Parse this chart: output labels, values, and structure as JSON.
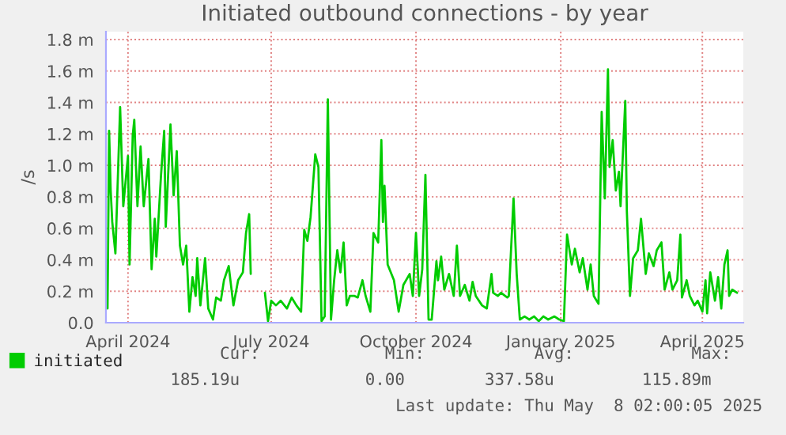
{
  "chart_data": {
    "type": "line",
    "title": "Initiated outbound connections - by year",
    "ylabel": "/s",
    "xlim": [
      "2024-03-18",
      "2025-04-27"
    ],
    "xticks": [
      {
        "value": "2024-04-01",
        "label": "April 2024"
      },
      {
        "value": "2024-07-01",
        "label": "July 2024"
      },
      {
        "value": "2024-10-01",
        "label": "October 2024"
      },
      {
        "value": "2025-01-01",
        "label": "January 2025"
      },
      {
        "value": "2025-04-01",
        "label": "April 2025"
      }
    ],
    "ylim": [
      0,
      1.85
    ],
    "yticks": [
      {
        "value": 0,
        "label": "0.0"
      },
      {
        "value": 0.2,
        "label": "0.2 m"
      },
      {
        "value": 0.4,
        "label": "0.4 m"
      },
      {
        "value": 0.6,
        "label": "0.6 m"
      },
      {
        "value": 0.8,
        "label": "0.8 m"
      },
      {
        "value": 1.0,
        "label": "1.0 m"
      },
      {
        "value": 1.2,
        "label": "1.2 m"
      },
      {
        "value": 1.4,
        "label": "1.4 m"
      },
      {
        "value": 1.6,
        "label": "1.6 m"
      },
      {
        "value": 1.8,
        "label": "1.8 m"
      }
    ],
    "grid": true,
    "legend": "bottom",
    "x": [
      "2024-03-19",
      "2024-03-20",
      "2024-03-21",
      "2024-03-22",
      "2024-03-24",
      "2024-03-27",
      "2024-03-29",
      "2024-04-01",
      "2024-04-02",
      "2024-04-04",
      "2024-04-05",
      "2024-04-07",
      "2024-04-09",
      "2024-04-11",
      "2024-04-14",
      "2024-04-16",
      "2024-04-18",
      "2024-04-19",
      "2024-04-22",
      "2024-04-24",
      "2024-04-25",
      "2024-04-28",
      "2024-04-30",
      "2024-05-02",
      "2024-05-04",
      "2024-05-06",
      "2024-05-08",
      "2024-05-10",
      "2024-05-12",
      "2024-05-14",
      "2024-05-15",
      "2024-05-17",
      "2024-05-20",
      "2024-05-22",
      "2024-05-25",
      "2024-05-27",
      "2024-05-30",
      "2024-06-01",
      "2024-06-04",
      "2024-06-07",
      "2024-06-10",
      "2024-06-13",
      "2024-06-15",
      "2024-06-17",
      "2024-06-18",
      "2024-06-22",
      "2024-06-27",
      "2024-06-29",
      "2024-07-01",
      "2024-07-04",
      "2024-07-07",
      "2024-07-11",
      "2024-07-14",
      "2024-07-17",
      "2024-07-20",
      "2024-07-22",
      "2024-07-24",
      "2024-07-26",
      "2024-07-29",
      "2024-07-31",
      "2024-08-02",
      "2024-08-04",
      "2024-08-06",
      "2024-08-08",
      "2024-08-10",
      "2024-08-12",
      "2024-08-14",
      "2024-08-16",
      "2024-08-18",
      "2024-08-20",
      "2024-08-23",
      "2024-08-25",
      "2024-08-28",
      "2024-08-30",
      "2024-09-02",
      "2024-09-04",
      "2024-09-07",
      "2024-09-09",
      "2024-09-10",
      "2024-09-11",
      "2024-09-13",
      "2024-09-17",
      "2024-09-20",
      "2024-09-23",
      "2024-09-27",
      "2024-09-29",
      "2024-10-01",
      "2024-10-03",
      "2024-10-05",
      "2024-10-07",
      "2024-10-09",
      "2024-10-11",
      "2024-10-14",
      "2024-10-15",
      "2024-10-17",
      "2024-10-19",
      "2024-10-22",
      "2024-10-25",
      "2024-10-27",
      "2024-10-29",
      "2024-11-01",
      "2024-11-04",
      "2024-11-06",
      "2024-11-08",
      "2024-11-12",
      "2024-11-15",
      "2024-11-18",
      "2024-11-19",
      "2024-11-22",
      "2024-11-24",
      "2024-11-28",
      "2024-11-29",
      "2024-12-02",
      "2024-12-04",
      "2024-12-06",
      "2024-12-09",
      "2024-12-12",
      "2024-12-15",
      "2024-12-18",
      "2024-12-21",
      "2024-12-24",
      "2024-12-28",
      "2024-12-31",
      "2025-01-03",
      "2025-01-05",
      "2025-01-08",
      "2025-01-10",
      "2025-01-13",
      "2025-01-15",
      "2025-01-18",
      "2025-01-20",
      "2025-01-22",
      "2025-01-25",
      "2025-01-27",
      "2025-01-29",
      "2025-01-31",
      "2025-02-01",
      "2025-02-03",
      "2025-02-05",
      "2025-02-07",
      "2025-02-08",
      "2025-02-11",
      "2025-02-12",
      "2025-02-14",
      "2025-02-16",
      "2025-02-19",
      "2025-02-21",
      "2025-02-24",
      "2025-02-26",
      "2025-03-01",
      "2025-03-03",
      "2025-03-06",
      "2025-03-08",
      "2025-03-11",
      "2025-03-13",
      "2025-03-16",
      "2025-03-18",
      "2025-03-19",
      "2025-03-22",
      "2025-03-24",
      "2025-03-27",
      "2025-03-29",
      "2025-04-01",
      "2025-04-03",
      "2025-04-04",
      "2025-04-06",
      "2025-04-09",
      "2025-04-11",
      "2025-04-13",
      "2025-04-15",
      "2025-04-17",
      "2025-04-18",
      "2025-04-20",
      "2025-04-23"
    ],
    "series": [
      {
        "name": "initiated",
        "color": "#00cc00",
        "values": [
          0.09,
          1.22,
          0.84,
          0.64,
          0.44,
          1.37,
          0.74,
          1.06,
          0.37,
          1.19,
          1.29,
          0.74,
          1.12,
          0.74,
          1.04,
          0.34,
          0.66,
          0.42,
          0.94,
          1.22,
          0.61,
          1.26,
          0.81,
          1.09,
          0.49,
          0.37,
          0.49,
          0.07,
          0.29,
          0.17,
          0.41,
          0.11,
          0.41,
          0.09,
          0.02,
          0.16,
          0.14,
          0.27,
          0.36,
          0.11,
          0.27,
          0.32,
          0.57,
          0.69,
          0.31,
          null,
          0.19,
          0.01,
          0.14,
          0.11,
          0.14,
          0.09,
          0.16,
          0.11,
          0.07,
          0.59,
          0.52,
          0.67,
          1.07,
          0.99,
          0.01,
          0.04,
          1.42,
          0.02,
          0.27,
          0.46,
          0.32,
          0.51,
          0.11,
          0.17,
          0.17,
          0.16,
          0.27,
          0.17,
          0.07,
          0.57,
          0.51,
          1.16,
          0.64,
          0.87,
          0.37,
          0.27,
          0.07,
          0.24,
          0.31,
          0.17,
          0.57,
          0.17,
          0.34,
          0.94,
          0.02,
          0.02,
          0.39,
          0.27,
          0.42,
          0.21,
          0.31,
          0.17,
          0.49,
          0.17,
          0.24,
          0.14,
          0.26,
          0.17,
          0.11,
          0.09,
          0.31,
          0.19,
          0.17,
          0.19,
          0.16,
          0.17,
          0.79,
          0.31,
          0.02,
          0.04,
          0.02,
          0.04,
          0.01,
          0.04,
          0.02,
          0.04,
          0.02,
          0.01,
          0.56,
          0.37,
          0.47,
          0.32,
          0.41,
          0.21,
          0.37,
          0.17,
          0.12,
          1.34,
          0.79,
          1.61,
          0.99,
          1.16,
          0.84,
          0.96,
          0.74,
          1.41,
          0.71,
          0.17,
          0.41,
          0.46,
          0.66,
          0.31,
          0.44,
          0.36,
          0.46,
          0.51,
          0.21,
          0.32,
          0.21,
          0.27,
          0.56,
          0.16,
          0.27,
          0.17,
          0.11,
          0.14,
          0.07,
          0.27,
          0.06,
          0.32,
          0.14,
          0.29,
          0.09,
          0.37,
          0.46,
          0.17,
          0.21,
          0.19
        ]
      }
    ],
    "annotations": [
      "Cur:",
      "Min:",
      "Avg:",
      "Max:",
      "185.19u",
      "0.00",
      "337.58u",
      "115.89m",
      "Last update: Thu May  8 02:00:05 2025"
    ]
  }
}
